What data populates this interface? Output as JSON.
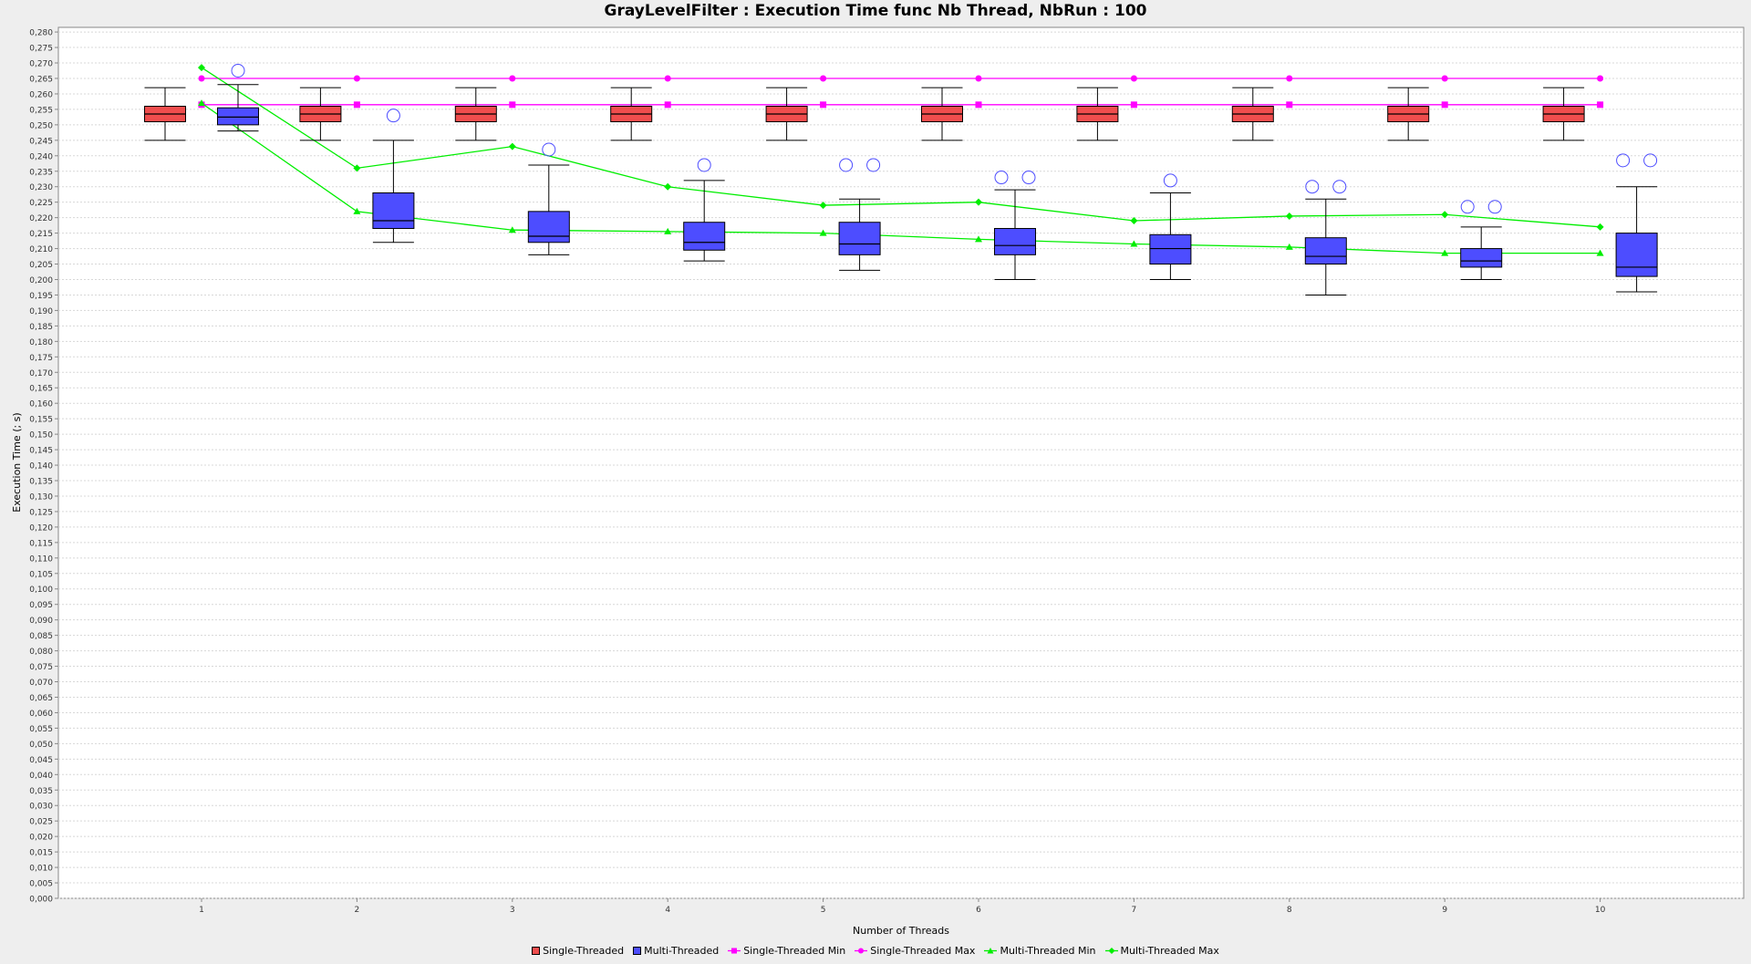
{
  "chart_data": {
    "type": "box",
    "title": "GrayLevelFilter : Execution Time func Nb Thread, NbRun : 100",
    "xlabel": "Number of Threads",
    "ylabel": "Execution Time (; s)",
    "categories": [
      "1",
      "2",
      "3",
      "4",
      "5",
      "6",
      "7",
      "8",
      "9",
      "10"
    ],
    "ylim": [
      0,
      0.28
    ],
    "ytick_step": 0.005,
    "grid": true,
    "legend_position": "bottom",
    "box_series": [
      {
        "name": "Single-Threaded",
        "color": "#ef4d4d",
        "boxes": [
          {
            "whisker_low": 0.245,
            "q1": 0.251,
            "median": 0.2535,
            "q3": 0.256,
            "whisker_high": 0.262,
            "outliers": []
          },
          {
            "whisker_low": 0.245,
            "q1": 0.251,
            "median": 0.2535,
            "q3": 0.256,
            "whisker_high": 0.262,
            "outliers": []
          },
          {
            "whisker_low": 0.245,
            "q1": 0.251,
            "median": 0.2535,
            "q3": 0.256,
            "whisker_high": 0.262,
            "outliers": []
          },
          {
            "whisker_low": 0.245,
            "q1": 0.251,
            "median": 0.2535,
            "q3": 0.256,
            "whisker_high": 0.262,
            "outliers": []
          },
          {
            "whisker_low": 0.245,
            "q1": 0.251,
            "median": 0.2535,
            "q3": 0.256,
            "whisker_high": 0.262,
            "outliers": []
          },
          {
            "whisker_low": 0.245,
            "q1": 0.251,
            "median": 0.2535,
            "q3": 0.256,
            "whisker_high": 0.262,
            "outliers": []
          },
          {
            "whisker_low": 0.245,
            "q1": 0.251,
            "median": 0.2535,
            "q3": 0.256,
            "whisker_high": 0.262,
            "outliers": []
          },
          {
            "whisker_low": 0.245,
            "q1": 0.251,
            "median": 0.2535,
            "q3": 0.256,
            "whisker_high": 0.262,
            "outliers": []
          },
          {
            "whisker_low": 0.245,
            "q1": 0.251,
            "median": 0.2535,
            "q3": 0.256,
            "whisker_high": 0.262,
            "outliers": []
          },
          {
            "whisker_low": 0.245,
            "q1": 0.251,
            "median": 0.2535,
            "q3": 0.256,
            "whisker_high": 0.262,
            "outliers": []
          }
        ]
      },
      {
        "name": "Multi-Threaded",
        "color": "#4d4dff",
        "boxes": [
          {
            "whisker_low": 0.248,
            "q1": 0.25,
            "median": 0.2525,
            "q3": 0.2555,
            "whisker_high": 0.263,
            "outliers": [
              0.2675
            ]
          },
          {
            "whisker_low": 0.212,
            "q1": 0.2165,
            "median": 0.219,
            "q3": 0.228,
            "whisker_high": 0.245,
            "outliers": [
              0.253
            ]
          },
          {
            "whisker_low": 0.208,
            "q1": 0.212,
            "median": 0.214,
            "q3": 0.222,
            "whisker_high": 0.237,
            "outliers": [
              0.242
            ]
          },
          {
            "whisker_low": 0.206,
            "q1": 0.2095,
            "median": 0.212,
            "q3": 0.2185,
            "whisker_high": 0.232,
            "outliers": [
              0.237
            ]
          },
          {
            "whisker_low": 0.203,
            "q1": 0.208,
            "median": 0.2115,
            "q3": 0.2185,
            "whisker_high": 0.226,
            "outliers": [
              0.237,
              0.237
            ]
          },
          {
            "whisker_low": 0.2,
            "q1": 0.208,
            "median": 0.211,
            "q3": 0.2165,
            "whisker_high": 0.229,
            "outliers": [
              0.233,
              0.233
            ]
          },
          {
            "whisker_low": 0.2,
            "q1": 0.205,
            "median": 0.21,
            "q3": 0.2145,
            "whisker_high": 0.228,
            "outliers": [
              0.232
            ]
          },
          {
            "whisker_low": 0.195,
            "q1": 0.205,
            "median": 0.2075,
            "q3": 0.2135,
            "whisker_high": 0.226,
            "outliers": [
              0.23,
              0.23
            ]
          },
          {
            "whisker_low": 0.2,
            "q1": 0.204,
            "median": 0.206,
            "q3": 0.21,
            "whisker_high": 0.217,
            "outliers": [
              0.2235,
              0.2235
            ]
          },
          {
            "whisker_low": 0.196,
            "q1": 0.201,
            "median": 0.204,
            "q3": 0.215,
            "whisker_high": 0.23,
            "outliers": [
              0.2385,
              0.2385
            ]
          }
        ]
      }
    ],
    "line_series": [
      {
        "name": "Single-Threaded Min",
        "color": "#ff00ff",
        "marker": "square",
        "values": [
          0.2565,
          0.2565,
          0.2565,
          0.2565,
          0.2565,
          0.2565,
          0.2565,
          0.2565,
          0.2565,
          0.2565
        ]
      },
      {
        "name": "Single-Threaded Max",
        "color": "#ff00ff",
        "marker": "circle",
        "values": [
          0.265,
          0.265,
          0.265,
          0.265,
          0.265,
          0.265,
          0.265,
          0.265,
          0.265,
          0.265
        ]
      },
      {
        "name": "Multi-Threaded Min",
        "color": "#00ee00",
        "marker": "triangle",
        "values": [
          0.257,
          0.222,
          0.216,
          0.2155,
          0.215,
          0.213,
          0.2115,
          0.2105,
          0.2085,
          0.2085
        ]
      },
      {
        "name": "Multi-Threaded Max",
        "color": "#00ee00",
        "marker": "diamond",
        "values": [
          0.2685,
          0.236,
          0.243,
          0.23,
          0.224,
          0.225,
          0.219,
          0.2205,
          0.221,
          0.217
        ]
      }
    ]
  }
}
